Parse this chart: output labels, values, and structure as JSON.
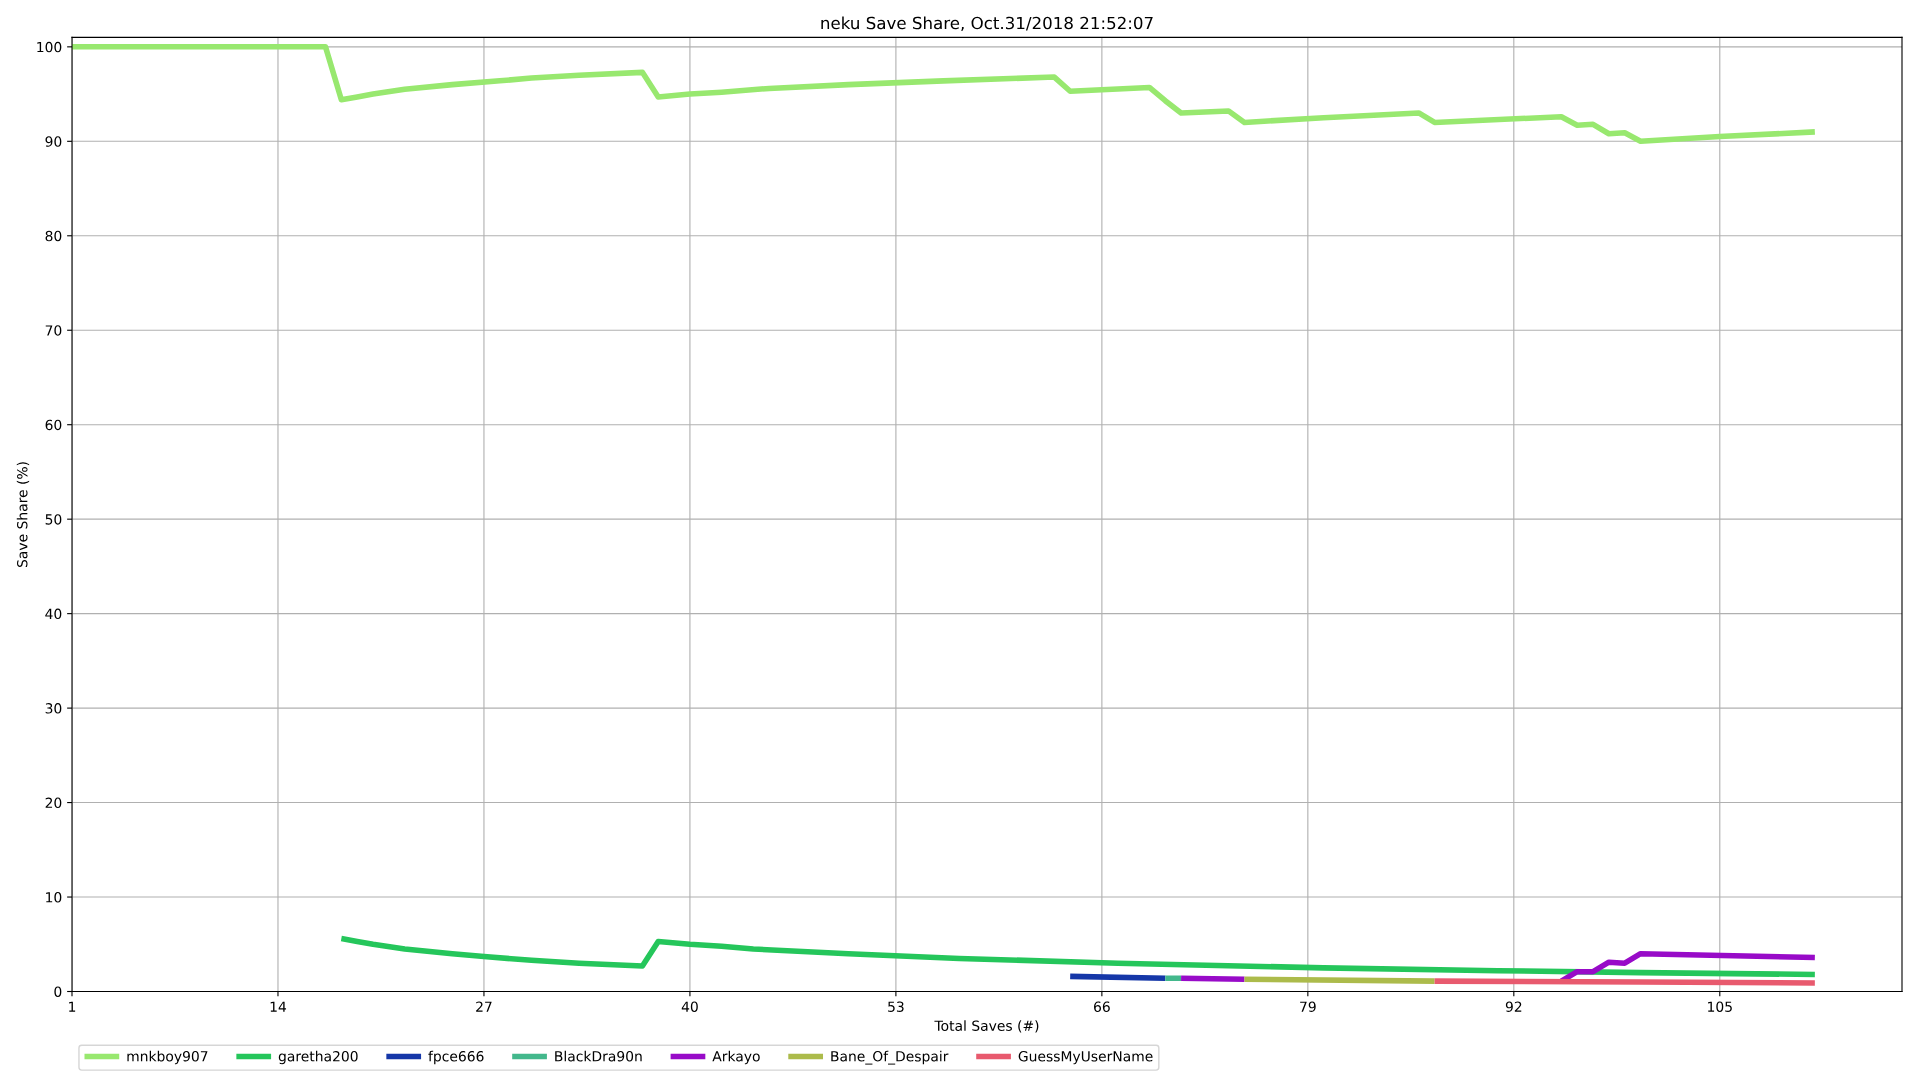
{
  "chart_data": {
    "type": "line",
    "title": "neku Save Share, Oct.31/2018 21:52:07",
    "xlabel": "Total Saves (#)",
    "ylabel": "Save Share (%)",
    "xlim": [
      1,
      116.5
    ],
    "ylim": [
      0,
      101
    ],
    "xticks": [
      1,
      14,
      27,
      40,
      53,
      66,
      79,
      92,
      105
    ],
    "yticks": [
      0,
      10,
      20,
      30,
      40,
      50,
      60,
      70,
      80,
      90,
      100
    ],
    "grid": true,
    "legend": "bottom",
    "line_style": "solid",
    "series": [
      {
        "name": "mnkboy907",
        "color": "#98e86f",
        "x": [
          1,
          17,
          18,
          19,
          20,
          22,
          25,
          28,
          30,
          33,
          37,
          38,
          40,
          42,
          45,
          50,
          56,
          63,
          64,
          69,
          70,
          71,
          74,
          75,
          80,
          86,
          87,
          95,
          96,
          97,
          98,
          99,
          100,
          105,
          111
        ],
        "values": [
          100,
          100,
          94.4,
          94.7,
          95.0,
          95.5,
          96.0,
          96.4,
          96.7,
          97.0,
          97.3,
          94.7,
          95.0,
          95.2,
          95.6,
          96.0,
          96.4,
          96.8,
          95.3,
          95.7,
          94.3,
          93.0,
          93.2,
          92.0,
          92.5,
          93.0,
          92.0,
          92.6,
          91.7,
          91.8,
          90.8,
          90.9,
          90.0,
          90.5,
          91.0
        ]
      },
      {
        "name": "garetha200",
        "color": "#25c65b",
        "x": [
          18,
          19,
          20,
          22,
          25,
          27,
          30,
          33,
          37,
          38,
          40,
          42,
          44,
          50,
          57,
          67,
          80,
          91,
          100,
          111
        ],
        "values": [
          5.6,
          5.3,
          5.0,
          4.5,
          4.0,
          3.7,
          3.3,
          3.0,
          2.7,
          5.3,
          5.0,
          4.8,
          4.5,
          4.0,
          3.5,
          3.0,
          2.5,
          2.2,
          2.0,
          1.8
        ]
      },
      {
        "name": "fpce666",
        "color": "#1537a8",
        "x": [
          64,
          70
        ],
        "values": [
          1.6,
          1.4
        ]
      },
      {
        "name": "BlackDra90n",
        "color": "#43b88c",
        "x": [
          70,
          71
        ],
        "values": [
          1.4,
          1.4
        ]
      },
      {
        "name": "Arkayo",
        "color": "#980bc8",
        "x": [
          71,
          75,
          85,
          95,
          96,
          97,
          98,
          99,
          100,
          111
        ],
        "values": [
          1.4,
          1.3,
          null,
          1.1,
          2.1,
          2.1,
          3.1,
          3.0,
          4.0,
          3.6
        ]
      },
      {
        "name": "Bane_Of_Despair",
        "color": "#acbb4b",
        "x": [
          75,
          87
        ],
        "values": [
          1.3,
          1.1
        ]
      },
      {
        "name": "GuessMyUserName",
        "color": "#e85a6e",
        "x": [
          87,
          100,
          111
        ],
        "values": [
          1.1,
          1.0,
          0.9
        ]
      }
    ]
  }
}
